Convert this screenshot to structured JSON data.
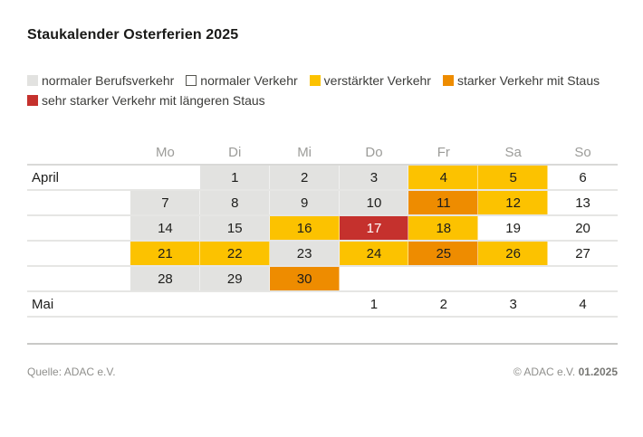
{
  "title": "Staukalender Osterferien 2025",
  "legend": {
    "items": [
      {
        "key": "work",
        "label": "normaler Berufsverkehr"
      },
      {
        "key": "normal",
        "label": "normaler Verkehr"
      },
      {
        "key": "increased",
        "label": "verstärkter Verkehr"
      },
      {
        "key": "heavy",
        "label": "starker Verkehr mit Staus"
      },
      {
        "key": "severe",
        "label": "sehr starker Verkehr mit längeren Staus"
      }
    ]
  },
  "colors": {
    "work": "#e2e2e0",
    "normal": "#ffffff",
    "increased": "#fcc200",
    "heavy": "#ee8c00",
    "severe": "#c5312d",
    "severe_text": "#ffffff",
    "text": "#1d1d1b",
    "muted_text": "#9c9c99"
  },
  "chart_data": {
    "type": "heatmap",
    "title": "Staukalender Osterferien 2025",
    "legend_position": "top",
    "categories": [
      "Mo",
      "Di",
      "Mi",
      "Do",
      "Fr",
      "Sa",
      "So"
    ],
    "level_labels": {
      "work": "normaler Berufsverkehr",
      "normal": "normaler Verkehr",
      "increased": "verstärkter Verkehr",
      "heavy": "starker Verkehr mit Staus",
      "severe": "sehr starker Verkehr mit längeren Staus",
      "none": ""
    },
    "rows": [
      {
        "month": "April",
        "days": [
          {
            "day": "",
            "level": "none"
          },
          {
            "day": "1",
            "level": "work"
          },
          {
            "day": "2",
            "level": "work"
          },
          {
            "day": "3",
            "level": "work"
          },
          {
            "day": "4",
            "level": "increased"
          },
          {
            "day": "5",
            "level": "increased"
          },
          {
            "day": "6",
            "level": "normal"
          }
        ]
      },
      {
        "month": "",
        "days": [
          {
            "day": "7",
            "level": "work"
          },
          {
            "day": "8",
            "level": "work"
          },
          {
            "day": "9",
            "level": "work"
          },
          {
            "day": "10",
            "level": "work"
          },
          {
            "day": "11",
            "level": "heavy"
          },
          {
            "day": "12",
            "level": "increased"
          },
          {
            "day": "13",
            "level": "normal"
          }
        ]
      },
      {
        "month": "",
        "days": [
          {
            "day": "14",
            "level": "work"
          },
          {
            "day": "15",
            "level": "work"
          },
          {
            "day": "16",
            "level": "increased"
          },
          {
            "day": "17",
            "level": "severe"
          },
          {
            "day": "18",
            "level": "increased"
          },
          {
            "day": "19",
            "level": "normal"
          },
          {
            "day": "20",
            "level": "normal"
          }
        ]
      },
      {
        "month": "",
        "days": [
          {
            "day": "21",
            "level": "increased"
          },
          {
            "day": "22",
            "level": "increased"
          },
          {
            "day": "23",
            "level": "work"
          },
          {
            "day": "24",
            "level": "increased"
          },
          {
            "day": "25",
            "level": "heavy"
          },
          {
            "day": "26",
            "level": "increased"
          },
          {
            "day": "27",
            "level": "normal"
          }
        ]
      },
      {
        "month": "",
        "days": [
          {
            "day": "28",
            "level": "work"
          },
          {
            "day": "29",
            "level": "work"
          },
          {
            "day": "30",
            "level": "heavy"
          },
          {
            "day": "",
            "level": "none"
          },
          {
            "day": "",
            "level": "none"
          },
          {
            "day": "",
            "level": "none"
          },
          {
            "day": "",
            "level": "none"
          }
        ]
      },
      {
        "month": "Mai",
        "days": [
          {
            "day": "",
            "level": "none"
          },
          {
            "day": "",
            "level": "none"
          },
          {
            "day": "",
            "level": "none"
          },
          {
            "day": "1",
            "level": "normal"
          },
          {
            "day": "2",
            "level": "normal"
          },
          {
            "day": "3",
            "level": "normal"
          },
          {
            "day": "4",
            "level": "normal"
          }
        ]
      }
    ]
  },
  "footer": {
    "source": "Quelle: ADAC e.V.",
    "copyright": "© ADAC e.V.",
    "edition": "01.2025"
  }
}
